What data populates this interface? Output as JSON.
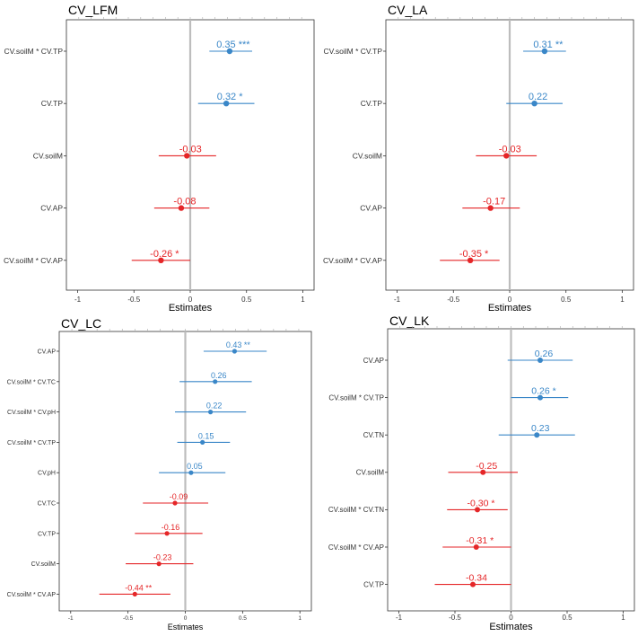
{
  "colors": {
    "positive": "#3a87c8",
    "negative": "#e52628",
    "zero_line": "#bdbdbd",
    "frame": "#333333"
  },
  "chart_data": [
    {
      "type": "forest",
      "title": "CV_LFM",
      "xlabel": "Estimates",
      "xlim": [
        -1.1,
        1.1
      ],
      "xticks": [
        -1,
        -0.5,
        0,
        0.5,
        1
      ],
      "xtick_labels": [
        "-1",
        "-0.5",
        "0",
        "0.5",
        "1"
      ],
      "rows": [
        {
          "term": "CV.soilM * CV.TP",
          "estimate": 0.35,
          "ci": [
            0.17,
            0.55
          ],
          "label": "0.35 ***"
        },
        {
          "term": "CV.TP",
          "estimate": 0.32,
          "ci": [
            0.07,
            0.57
          ],
          "label": "0.32 *"
        },
        {
          "term": "CV.soilM",
          "estimate": -0.03,
          "ci": [
            -0.28,
            0.23
          ],
          "label": "-0.03"
        },
        {
          "term": "CV.AP",
          "estimate": -0.08,
          "ci": [
            -0.32,
            0.17
          ],
          "label": "-0.08"
        },
        {
          "term": "CV.soilM * CV.AP",
          "estimate": -0.26,
          "ci": [
            -0.52,
            0.0
          ],
          "label": "-0.26 *"
        }
      ]
    },
    {
      "type": "forest",
      "title": "CV_LA",
      "xlabel": "Estimates",
      "xlim": [
        -1.1,
        1.1
      ],
      "xticks": [
        -1,
        -0.5,
        0,
        0.5,
        1
      ],
      "xtick_labels": [
        "-1",
        "-0.5",
        "0",
        "0.5",
        "1"
      ],
      "rows": [
        {
          "term": "CV.soilM * CV.TP",
          "estimate": 0.31,
          "ci": [
            0.12,
            0.5
          ],
          "label": "0.31 **"
        },
        {
          "term": "CV.TP",
          "estimate": 0.22,
          "ci": [
            -0.03,
            0.47
          ],
          "label": "0.22"
        },
        {
          "term": "CV.soilM",
          "estimate": -0.03,
          "ci": [
            -0.3,
            0.24
          ],
          "label": "-0.03"
        },
        {
          "term": "CV.AP",
          "estimate": -0.17,
          "ci": [
            -0.42,
            0.09
          ],
          "label": "-0.17"
        },
        {
          "term": "CV.soilM * CV.AP",
          "estimate": -0.35,
          "ci": [
            -0.62,
            -0.09
          ],
          "label": "-0.35 *"
        }
      ]
    },
    {
      "type": "forest",
      "title": "CV_LC",
      "xlabel": "Estimates",
      "xlim": [
        -1.1,
        1.1
      ],
      "xticks": [
        -1,
        -0.5,
        0,
        0.5,
        1
      ],
      "xtick_labels": [
        "-1",
        "-0.5",
        "0",
        "0.5",
        "1"
      ],
      "rows": [
        {
          "term": "CV.AP",
          "estimate": 0.43,
          "ci": [
            0.16,
            0.71
          ],
          "label": "0.43 **"
        },
        {
          "term": "CV.soilM * CV.TC",
          "estimate": 0.26,
          "ci": [
            -0.05,
            0.58
          ],
          "label": "0.26"
        },
        {
          "term": "CV.soilM * CV.pH",
          "estimate": 0.22,
          "ci": [
            -0.09,
            0.53
          ],
          "label": "0.22"
        },
        {
          "term": "CV.soilM * CV.TP",
          "estimate": 0.15,
          "ci": [
            -0.07,
            0.39
          ],
          "label": "0.15"
        },
        {
          "term": "CV.pH",
          "estimate": 0.05,
          "ci": [
            -0.23,
            0.35
          ],
          "label": "0.05"
        },
        {
          "term": "CV.TC",
          "estimate": -0.09,
          "ci": [
            -0.37,
            0.2
          ],
          "label": "-0.09"
        },
        {
          "term": "CV.TP",
          "estimate": -0.16,
          "ci": [
            -0.44,
            0.15
          ],
          "label": "-0.16"
        },
        {
          "term": "CV.soilM",
          "estimate": -0.23,
          "ci": [
            -0.52,
            0.07
          ],
          "label": "-0.23"
        },
        {
          "term": "CV.soilM * CV.AP",
          "estimate": -0.44,
          "ci": [
            -0.75,
            -0.13
          ],
          "label": "-0.44 **"
        }
      ]
    },
    {
      "type": "forest",
      "title": "CV_LK",
      "xlabel": "Estimates",
      "xlim": [
        -1.1,
        1.1
      ],
      "xticks": [
        -1,
        -0.5,
        0,
        0.5,
        1
      ],
      "xtick_labels": [
        "-1",
        "-0.5",
        "0",
        "0.5",
        "1"
      ],
      "rows": [
        {
          "term": "CV.AP",
          "estimate": 0.26,
          "ci": [
            -0.03,
            0.55
          ],
          "label": "0.26"
        },
        {
          "term": "CV.soilM * CV.TP",
          "estimate": 0.26,
          "ci": [
            0.0,
            0.51
          ],
          "label": "0.26 *"
        },
        {
          "term": "CV.TN",
          "estimate": 0.23,
          "ci": [
            -0.11,
            0.57
          ],
          "label": "0.23"
        },
        {
          "term": "CV.soilM",
          "estimate": -0.25,
          "ci": [
            -0.56,
            0.06
          ],
          "label": "-0.25"
        },
        {
          "term": "CV.soilM * CV.TN",
          "estimate": -0.3,
          "ci": [
            -0.57,
            -0.03
          ],
          "label": "-0.30 *"
        },
        {
          "term": "CV.soilM * CV.AP",
          "estimate": -0.31,
          "ci": [
            -0.61,
            0.0
          ],
          "label": "-0.31 *"
        },
        {
          "term": "CV.TP",
          "estimate": -0.34,
          "ci": [
            -0.68,
            0.0
          ],
          "label": "-0.34"
        }
      ]
    }
  ]
}
